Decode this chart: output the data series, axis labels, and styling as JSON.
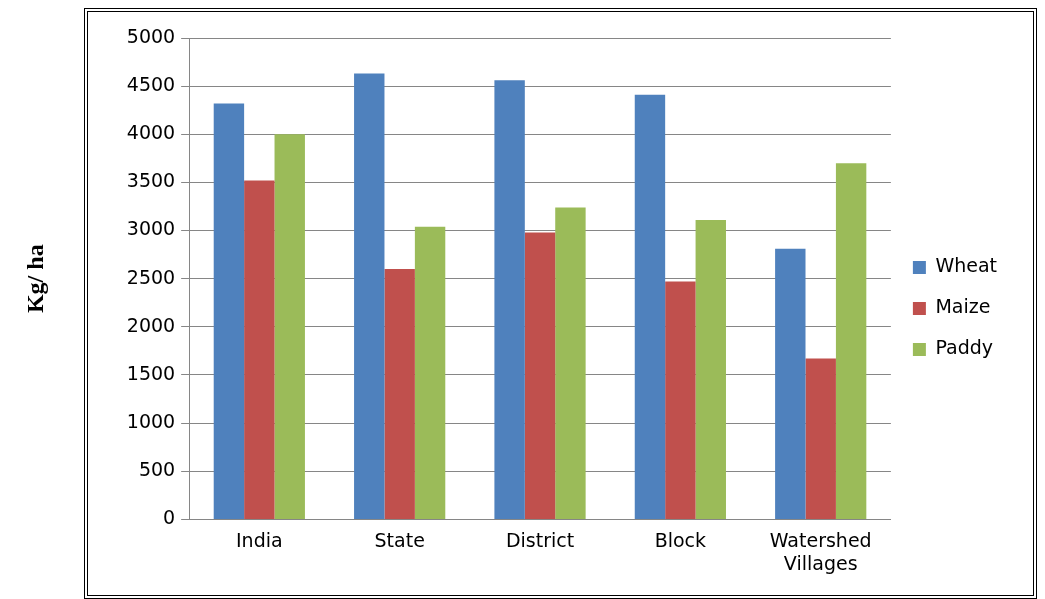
{
  "chart_data": {
    "type": "bar",
    "ylabel": "Kg/ ha",
    "categories": [
      "India",
      "State",
      "District",
      "Block",
      "Watershed Villages"
    ],
    "series": [
      {
        "name": "Wheat",
        "color": "#4f81bd",
        "values": [
          4320,
          4630,
          4560,
          4410,
          2810
        ]
      },
      {
        "name": "Maize",
        "color": "#c0504d",
        "values": [
          3520,
          2600,
          2980,
          2470,
          1670
        ]
      },
      {
        "name": "Paddy",
        "color": "#9bbb59",
        "values": [
          4000,
          3040,
          3240,
          3110,
          3700
        ]
      }
    ],
    "ylim": [
      0,
      5000
    ],
    "yticks": [
      0,
      500,
      1000,
      1500,
      2000,
      2500,
      3000,
      3500,
      4000,
      4500,
      5000
    ],
    "grid": "y",
    "legend": "right"
  }
}
